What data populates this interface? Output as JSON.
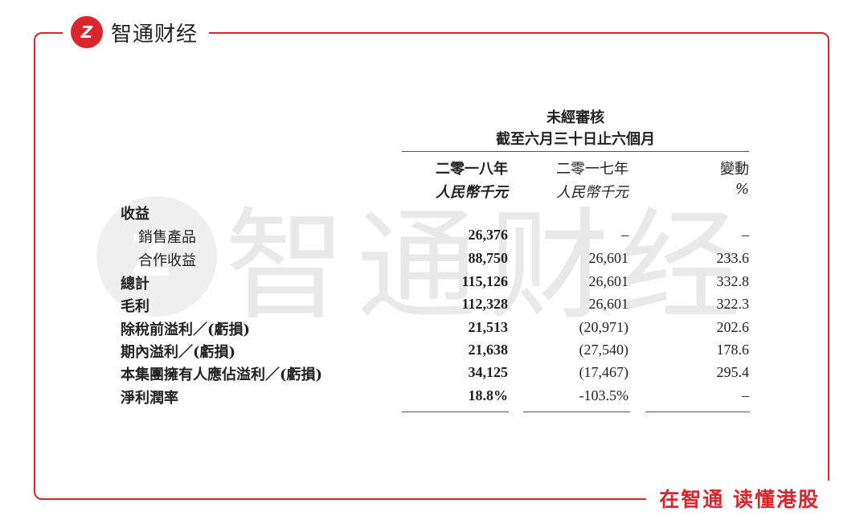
{
  "brand": {
    "logo_text": "Z",
    "name": "智通财经"
  },
  "slogan": "在智通 读懂港股",
  "watermark": "智通财经",
  "table": {
    "title_line1": "未經審核",
    "title_line2": "截至六月三十日止六個月",
    "columns": [
      {
        "year": "二零一八年",
        "unit": "人民幣千元"
      },
      {
        "year": "二零一七年",
        "unit": "人民幣千元"
      },
      {
        "year": "變動",
        "unit": "%"
      }
    ],
    "rows": [
      {
        "label": "收益",
        "values": [
          "",
          "",
          ""
        ]
      },
      {
        "label": "銷售產品",
        "values": [
          "26,376",
          "–",
          "–"
        ]
      },
      {
        "label": "合作收益",
        "values": [
          "88,750",
          "26,601",
          "233.6"
        ]
      },
      {
        "label": "總計",
        "values": [
          "115,126",
          "26,601",
          "332.8"
        ]
      },
      {
        "label": "毛利",
        "values": [
          "112,328",
          "26,601",
          "322.3"
        ]
      },
      {
        "label": "除稅前溢利／(虧損)",
        "values": [
          "21,513",
          "(20,971)",
          "202.6"
        ]
      },
      {
        "label": "期內溢利／(虧損)",
        "values": [
          "21,638",
          "(27,540)",
          "178.6"
        ]
      },
      {
        "label": "本集團擁有人應佔溢利／(虧損)",
        "values": [
          "34,125",
          "(17,467)",
          "295.4"
        ]
      },
      {
        "label": "淨利潤率",
        "values": [
          "18.8%",
          "-103.5%",
          "–"
        ]
      }
    ]
  },
  "colors": {
    "accent": "#d9252b"
  }
}
